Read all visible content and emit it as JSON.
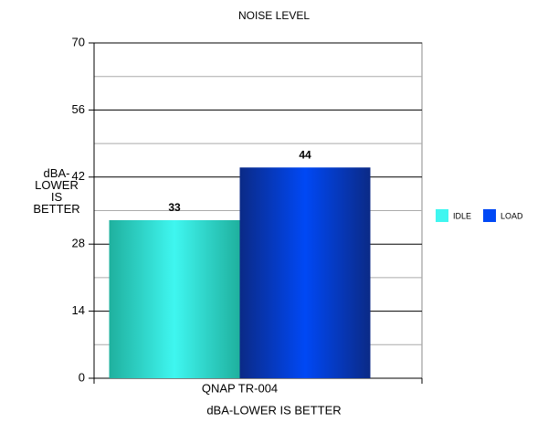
{
  "chart_data": {
    "type": "bar",
    "title": "NOISE LEVEL",
    "categories": [
      "QNAP TR-004"
    ],
    "series": [
      {
        "name": "IDLE",
        "color": "#3ff6f0",
        "edge": "#1fb09e",
        "values": [
          33
        ]
      },
      {
        "name": "LOAD",
        "color": "#0048f5",
        "edge": "#0b2a86",
        "values": [
          44
        ]
      }
    ],
    "ylim": [
      0,
      70
    ],
    "yticks": [
      0,
      14,
      28,
      42,
      56,
      70
    ],
    "minor_yticks": [
      7,
      21,
      35,
      49,
      63
    ],
    "ylabel": [
      "dBA-",
      "LOWER",
      "IS",
      "BETTER"
    ],
    "xlabel": "dBA-LOWER IS BETTER",
    "grid": true,
    "legend": "right"
  }
}
